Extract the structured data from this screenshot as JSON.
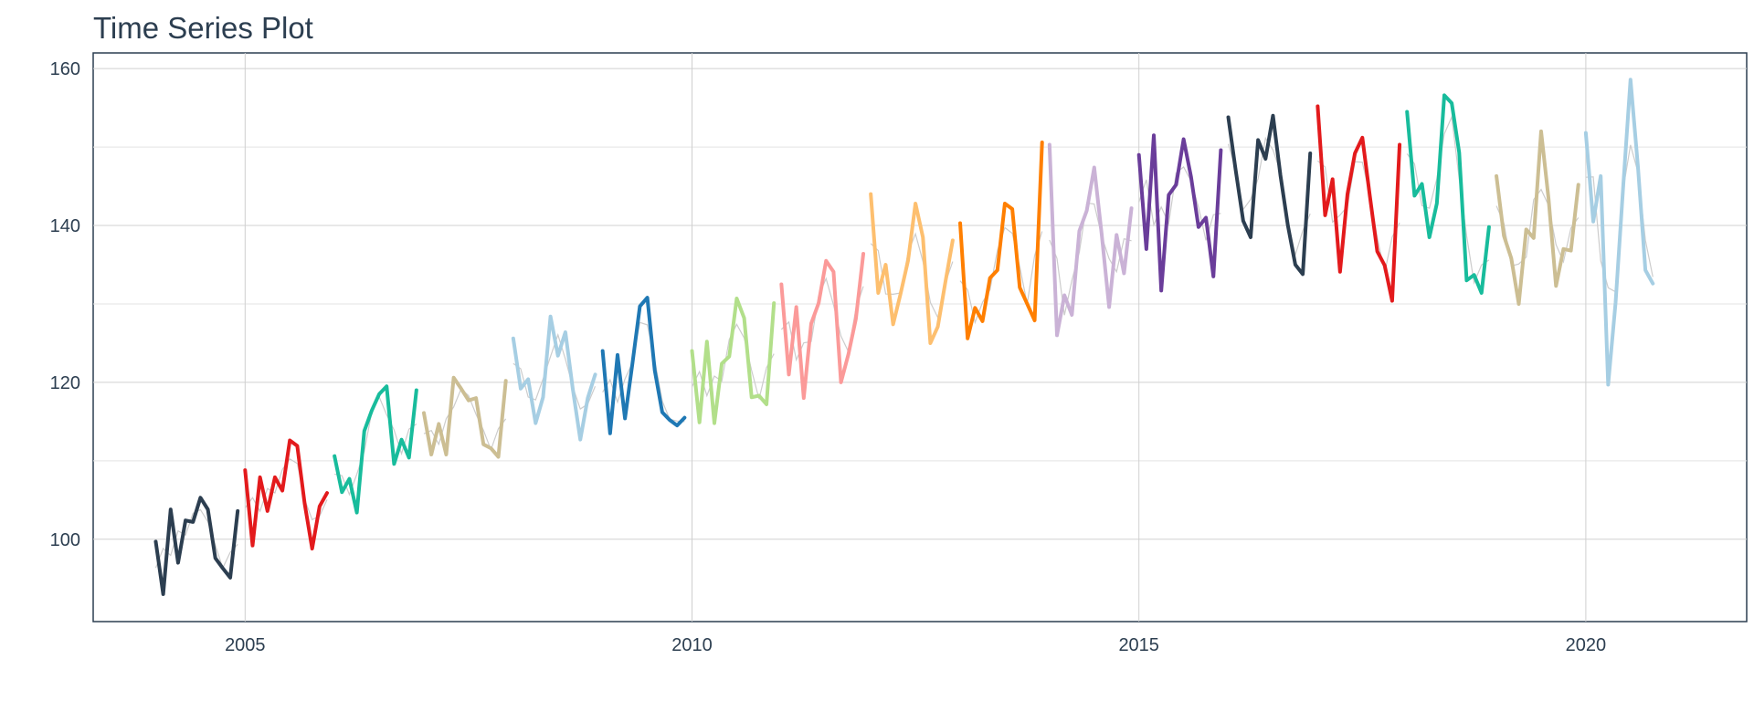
{
  "chart_data": {
    "type": "line",
    "title": "Time Series Plot",
    "xlabel": "",
    "ylabel": "",
    "xlim": [
      2003.3,
      2021.8
    ],
    "ylim": [
      89.5,
      162
    ],
    "x_ticks": [
      2005,
      2010,
      2015,
      2020
    ],
    "y_ticks": [
      100,
      120,
      140,
      160
    ],
    "y_minor_ticks": [
      110,
      130,
      150
    ],
    "grid": true,
    "legend": "none",
    "smooth_color": "#cccccc",
    "series": [
      {
        "color": "#2c3e50",
        "x0": 2004.0,
        "values": [
          99.7,
          93.0,
          103.8,
          97.0,
          102.4,
          102.2,
          105.3,
          103.8,
          97.6,
          96.3,
          95.1,
          103.6
        ]
      },
      {
        "color": "#e31a1c",
        "x0": 2005.0,
        "values": [
          108.8,
          99.2,
          107.9,
          103.6,
          107.9,
          106.2,
          112.6,
          111.9,
          104.5,
          98.8,
          104.2,
          105.9
        ]
      },
      {
        "color": "#18bc9c",
        "x0": 2006.0,
        "values": [
          110.6,
          106.0,
          107.7,
          103.4,
          113.8,
          116.4,
          118.5,
          119.5,
          109.6,
          112.7,
          110.4,
          119.0
        ]
      },
      {
        "color": "#ccbe93",
        "x0": 2007.0,
        "values": [
          116.1,
          110.8,
          114.7,
          110.8,
          120.6,
          119.2,
          117.7,
          118.0,
          112.1,
          111.6,
          110.5,
          120.2
        ]
      },
      {
        "color": "#a6cee3",
        "x0": 2008.0,
        "values": [
          125.6,
          119.2,
          120.4,
          114.8,
          118.1,
          128.4,
          123.4,
          126.4,
          119.1,
          112.7,
          118.0,
          121.0
        ]
      },
      {
        "color": "#1f78b4",
        "x0": 2009.0,
        "values": [
          124.0,
          113.5,
          123.5,
          115.4,
          122.4,
          129.7,
          130.8,
          121.5,
          116.2,
          115.2,
          114.5,
          115.5
        ]
      },
      {
        "color": "#b2df8a",
        "x0": 2010.0,
        "values": [
          124.0,
          114.9,
          125.2,
          114.8,
          122.4,
          123.3,
          130.7,
          128.2,
          118.1,
          118.3,
          117.2,
          130.1
        ]
      },
      {
        "color": "#fb9a99",
        "x0": 2011.0,
        "values": [
          132.5,
          121.0,
          129.6,
          118.0,
          127.5,
          130.1,
          135.5,
          134.1,
          120.0,
          123.6,
          128.1,
          136.4
        ]
      },
      {
        "color": "#fdbf6f",
        "x0": 2012.0,
        "values": [
          144.0,
          131.4,
          135.0,
          127.4,
          131.3,
          135.5,
          142.8,
          138.5,
          125.0,
          127.1,
          132.7,
          138.1
        ]
      },
      {
        "color": "#ff7f00",
        "x0": 2013.0,
        "values": [
          140.3,
          125.6,
          129.5,
          127.8,
          133.3,
          134.3,
          142.8,
          142.1,
          132.1,
          130.0,
          127.9,
          150.6
        ]
      },
      {
        "color": "#cab2d6",
        "x0": 2014.0,
        "values": [
          150.3,
          126.0,
          131.1,
          128.6,
          139.3,
          141.9,
          147.4,
          138.9,
          129.6,
          138.8,
          133.9,
          142.2
        ]
      },
      {
        "color": "#6a3d9a",
        "x0": 2015.0,
        "values": [
          149.0,
          137.0,
          151.5,
          131.7,
          143.9,
          145.2,
          151.0,
          146.2,
          139.8,
          141.0,
          133.5,
          149.6
        ]
      },
      {
        "color": "#2c3e50",
        "x0": 2016.0,
        "values": [
          153.8,
          147.0,
          140.6,
          138.5,
          150.9,
          148.5,
          154.0,
          146.4,
          140.0,
          135.0,
          133.8,
          149.2
        ]
      },
      {
        "color": "#e31a1c",
        "x0": 2017.0,
        "values": [
          155.2,
          141.3,
          145.9,
          134.1,
          144.0,
          149.2,
          151.2,
          143.8,
          136.7,
          134.9,
          130.4,
          150.3
        ]
      },
      {
        "color": "#18bc9c",
        "x0": 2018.0,
        "values": [
          154.5,
          143.8,
          145.3,
          138.5,
          142.8,
          156.6,
          155.6,
          149.3,
          133.0,
          133.7,
          131.4,
          139.8
        ]
      },
      {
        "color": "#ccbe93",
        "x0": 2019.0,
        "values": [
          146.3,
          138.7,
          135.8,
          130.0,
          139.5,
          138.4,
          152.0,
          143.4,
          132.3,
          137.0,
          136.8,
          145.2
        ]
      },
      {
        "color": "#a6cee3",
        "x0": 2020.0,
        "values": [
          151.8,
          140.5,
          146.3,
          119.7,
          130.2,
          144.7,
          158.6,
          147.5,
          134.3,
          132.6
        ]
      }
    ]
  }
}
